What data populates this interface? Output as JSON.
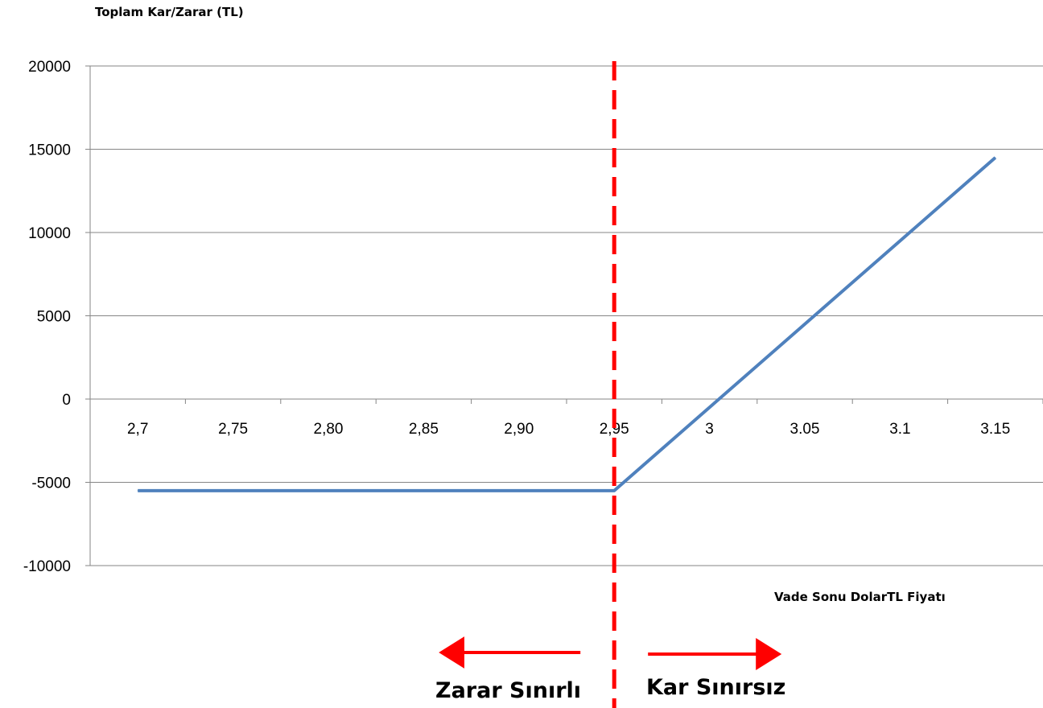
{
  "chart_data": {
    "type": "line",
    "title": "",
    "ylabel": "Toplam Kar/Zarar (TL)",
    "xlabel": "Vade Sonu DolarTL Fiyatı",
    "categories": [
      "2,7",
      "2,75",
      "2,80",
      "2,85",
      "2,90",
      "2,95",
      "3",
      "3.05",
      "3.1",
      "3.15"
    ],
    "series": [
      {
        "values": [
          -5500,
          -5500,
          -5500,
          -5500,
          -5500,
          -5500,
          -500,
          4500,
          9500,
          14500
        ]
      }
    ],
    "ylim": [
      -10000,
      20000
    ],
    "yticks": [
      20000,
      15000,
      10000,
      5000,
      0,
      -5000,
      -10000
    ],
    "ytick_labels": [
      "20000",
      "15000",
      "10000",
      "5000",
      "0",
      "-5000",
      "-10000"
    ],
    "grid": true,
    "series_color": "#4f81bd",
    "breakeven_marker": {
      "x": "2,95",
      "color": "#ff0000",
      "style": "dashed"
    },
    "annotations": {
      "loss_label": "Zarar Sınırlı",
      "profit_label": "Kar Sınırsız",
      "arrow_color": "#ff0000"
    }
  }
}
